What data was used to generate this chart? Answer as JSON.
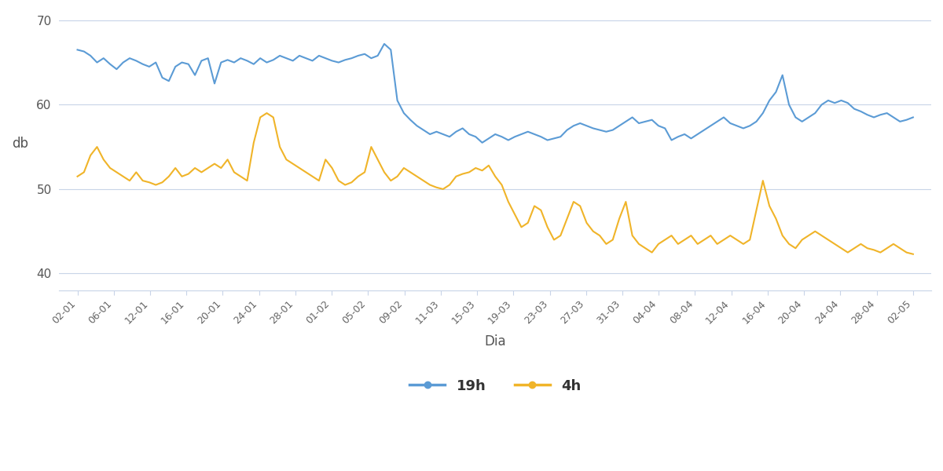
{
  "title": "",
  "xlabel": "Dia",
  "ylabel": "db",
  "ylim": [
    38,
    71
  ],
  "yticks": [
    40,
    50,
    60,
    70
  ],
  "line_color_19h": "#5b9bd5",
  "line_color_4h": "#f0b429",
  "legend_19h": "19h",
  "legend_4h": "4h",
  "background_color": "#ffffff",
  "grid_color": "#c8d4e8",
  "x_labels": [
    "02-01",
    "06-01",
    "12-01",
    "16-01",
    "20-01",
    "24-01",
    "28-01",
    "01-02",
    "05-02",
    "09-02",
    "11-03",
    "15-03",
    "19-03",
    "23-03",
    "27-03",
    "31-03",
    "04-04",
    "08-04",
    "12-04",
    "16-04",
    "20-04",
    "24-04",
    "28-04",
    "02-05"
  ],
  "values_19h": [
    66.5,
    66.3,
    65.8,
    65.0,
    65.5,
    64.8,
    64.2,
    65.0,
    65.5,
    65.2,
    64.8,
    64.5,
    65.0,
    63.2,
    62.8,
    64.5,
    65.0,
    64.8,
    63.5,
    65.2,
    65.5,
    62.5,
    65.0,
    65.3,
    65.0,
    65.5,
    65.2,
    64.8,
    65.5,
    65.0,
    65.3,
    65.8,
    65.5,
    65.2,
    65.8,
    65.5,
    65.2,
    65.8,
    65.5,
    65.2,
    65.0,
    65.3,
    65.5,
    65.8,
    66.0,
    65.5,
    65.8,
    67.2,
    66.5,
    60.5,
    59.0,
    58.2,
    57.5,
    57.0,
    56.5,
    56.8,
    56.5,
    56.2,
    56.8,
    57.2,
    56.5,
    56.2,
    55.5,
    56.0,
    56.5,
    56.2,
    55.8,
    56.2,
    56.5,
    56.8,
    56.5,
    56.2,
    55.8,
    56.0,
    56.2,
    57.0,
    57.5,
    57.8,
    57.5,
    57.2,
    57.0,
    56.8,
    57.0,
    57.5,
    58.0,
    58.5,
    57.8,
    58.0,
    58.2,
    57.5,
    57.2,
    55.8,
    56.2,
    56.5,
    56.0,
    56.5,
    57.0,
    57.5,
    58.0,
    58.5,
    57.8,
    57.5,
    57.2,
    57.5,
    58.0,
    59.0,
    60.5,
    61.5,
    63.5,
    60.0,
    58.5,
    58.0,
    58.5,
    59.0,
    60.0,
    60.5,
    60.2,
    60.5,
    60.2,
    59.5,
    59.2,
    58.8,
    58.5,
    58.8,
    59.0,
    58.5,
    58.0,
    58.2,
    58.5
  ],
  "values_4h": [
    51.5,
    52.0,
    54.0,
    55.0,
    53.5,
    52.5,
    52.0,
    51.5,
    51.0,
    52.0,
    51.0,
    50.8,
    50.5,
    50.8,
    51.5,
    52.5,
    51.5,
    51.8,
    52.5,
    52.0,
    52.5,
    53.0,
    52.5,
    53.5,
    52.0,
    51.5,
    51.0,
    55.5,
    58.5,
    59.0,
    58.5,
    55.0,
    53.5,
    53.0,
    52.5,
    52.0,
    51.5,
    51.0,
    53.5,
    52.5,
    51.0,
    50.5,
    50.8,
    51.5,
    52.0,
    55.0,
    53.5,
    52.0,
    51.0,
    51.5,
    52.5,
    52.0,
    51.5,
    51.0,
    50.5,
    50.2,
    50.0,
    50.5,
    51.5,
    51.8,
    52.0,
    52.5,
    52.2,
    52.8,
    51.5,
    50.5,
    48.5,
    47.0,
    45.5,
    46.0,
    48.0,
    47.5,
    45.5,
    44.0,
    44.5,
    46.5,
    48.5,
    48.0,
    46.0,
    45.0,
    44.5,
    43.5,
    44.0,
    46.5,
    48.5,
    44.5,
    43.5,
    43.0,
    42.5,
    43.5,
    44.0,
    44.5,
    43.5,
    44.0,
    44.5,
    43.5,
    44.0,
    44.5,
    43.5,
    44.0,
    44.5,
    44.0,
    43.5,
    44.0,
    47.5,
    51.0,
    48.0,
    46.5,
    44.5,
    43.5,
    43.0,
    44.0,
    44.5,
    45.0,
    44.5,
    44.0,
    43.5,
    43.0,
    42.5,
    43.0,
    43.5,
    43.0,
    42.8,
    42.5,
    43.0,
    43.5,
    43.0,
    42.5,
    42.3
  ],
  "line_width": 1.5,
  "figsize": [
    12,
    6
  ],
  "dpi": 100
}
